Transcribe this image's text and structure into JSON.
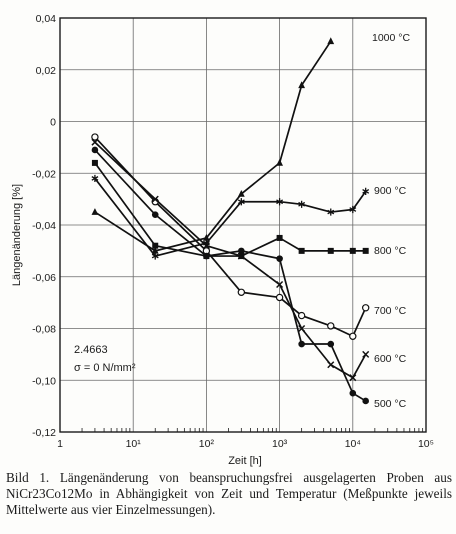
{
  "chart_data": {
    "type": "line",
    "xscale": "log",
    "xlim": [
      1,
      100000
    ],
    "ylim": [
      -0.12,
      0.04
    ],
    "xlabel": "Zeit [h]",
    "ylabel": "Längenänderung [%]",
    "grid": true,
    "x_ticks": [
      {
        "value": 1,
        "label": "1"
      },
      {
        "value": 10,
        "label": "10¹"
      },
      {
        "value": 100,
        "label": "10²"
      },
      {
        "value": 1000,
        "label": "10³"
      },
      {
        "value": 10000,
        "label": "10⁴"
      },
      {
        "value": 100000,
        "label": "10⁵"
      }
    ],
    "y_ticks": [
      {
        "value": 0.04,
        "label": "0,04"
      },
      {
        "value": 0.02,
        "label": "0,02"
      },
      {
        "value": 0,
        "label": "0"
      },
      {
        "value": -0.02,
        "label": "-0,02"
      },
      {
        "value": -0.04,
        "label": "-0,04"
      },
      {
        "value": -0.06,
        "label": "-0,06"
      },
      {
        "value": -0.08,
        "label": "-0,08"
      },
      {
        "value": -0.1,
        "label": "-0,10"
      },
      {
        "value": -0.12,
        "label": "-0,12"
      }
    ],
    "annotation_lines": [
      "2.4663",
      "σ = 0 N/mm²"
    ],
    "series": [
      {
        "name": "1000 °C",
        "marker": "triangle",
        "x": [
          3,
          20,
          100,
          300,
          1000,
          2000,
          5000
        ],
        "y": [
          -0.035,
          -0.05,
          -0.045,
          -0.028,
          -0.016,
          0.014,
          0.031
        ]
      },
      {
        "name": "900 °C",
        "marker": "star",
        "x": [
          3,
          20,
          100,
          300,
          1000,
          2000,
          5000,
          10000,
          15000
        ],
        "y": [
          -0.022,
          -0.052,
          -0.047,
          -0.031,
          -0.031,
          -0.032,
          -0.035,
          -0.034,
          -0.027
        ]
      },
      {
        "name": "800 °C",
        "marker": "square",
        "x": [
          3,
          20,
          100,
          300,
          1000,
          2000,
          5000,
          10000,
          15000
        ],
        "y": [
          -0.016,
          -0.048,
          -0.052,
          -0.052,
          -0.045,
          -0.05,
          -0.05,
          -0.05,
          -0.05
        ]
      },
      {
        "name": "700 °C",
        "marker": "open-circle",
        "x": [
          3,
          20,
          100,
          300,
          1000,
          2000,
          5000,
          10000,
          15000
        ],
        "y": [
          -0.006,
          -0.031,
          -0.05,
          -0.066,
          -0.068,
          -0.075,
          -0.079,
          -0.083,
          -0.072
        ]
      },
      {
        "name": "600 °C",
        "marker": "cross",
        "x": [
          3,
          20,
          100,
          300,
          1000,
          2000,
          5000,
          10000,
          15000
        ],
        "y": [
          -0.008,
          -0.03,
          -0.048,
          -0.052,
          -0.063,
          -0.08,
          -0.094,
          -0.099,
          -0.09
        ]
      },
      {
        "name": "500 °C",
        "marker": "filled-circle",
        "x": [
          3,
          20,
          100,
          300,
          1000,
          2000,
          5000,
          10000,
          15000
        ],
        "y": [
          -0.011,
          -0.036,
          -0.052,
          -0.05,
          -0.053,
          -0.086,
          -0.086,
          -0.105,
          -0.108
        ]
      }
    ]
  },
  "caption": "Bild 1. Längenänderung von beanspruchungsfrei ausgelagerten Proben aus NiCr23Co12Mo in Abhängigkeit von Zeit und Temperatur (Meßpunkte jeweils Mittelwerte aus vier Einzelmessungen)."
}
